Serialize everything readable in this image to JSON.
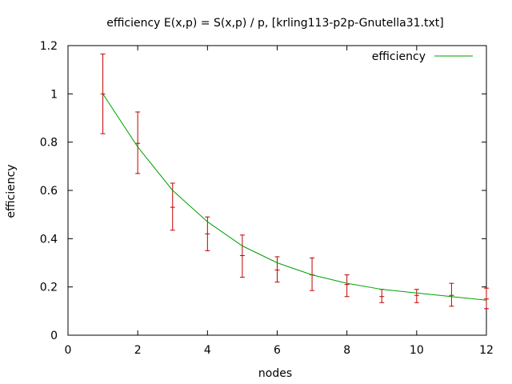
{
  "chart_data": {
    "type": "line",
    "title": "efficiency E(x,p) = S(x,p) / p, [krling113-p2p-Gnutella31.txt]",
    "xlabel": "nodes",
    "ylabel": "efficiency",
    "xlim": [
      0,
      12
    ],
    "ylim": [
      0,
      1.2
    ],
    "x_ticks": [
      "0",
      "2",
      "4",
      "6",
      "8",
      "10",
      "12"
    ],
    "y_ticks": [
      "0",
      "0.2",
      "0.4",
      "0.6",
      "0.8",
      "1",
      "1.2"
    ],
    "grid": false,
    "legend_position": "top-right",
    "colors": {
      "fit": "#00a000",
      "errorbars": "#c00000",
      "axes": "#000000"
    },
    "series": [
      {
        "name": "efficiency",
        "style": "line",
        "color": "#00a000",
        "x": [
          1,
          2,
          3,
          4,
          5,
          6,
          7,
          8,
          9,
          10,
          11,
          12
        ],
        "y": [
          1.0,
          0.78,
          0.6,
          0.47,
          0.37,
          0.3,
          0.25,
          0.215,
          0.19,
          0.175,
          0.16,
          0.145
        ]
      },
      {
        "style": "errorbars",
        "color": "#c00000",
        "x": [
          1,
          2,
          3,
          4,
          5,
          6,
          7,
          8,
          9,
          10,
          11,
          12
        ],
        "y": [
          1.0,
          0.795,
          0.53,
          0.42,
          0.33,
          0.27,
          0.25,
          0.21,
          0.16,
          0.165,
          0.165,
          0.15
        ],
        "ylow": [
          0.835,
          0.67,
          0.435,
          0.35,
          0.24,
          0.22,
          0.185,
          0.16,
          0.135,
          0.135,
          0.12,
          0.11
        ],
        "yhigh": [
          1.165,
          0.925,
          0.63,
          0.49,
          0.415,
          0.325,
          0.32,
          0.25,
          0.19,
          0.19,
          0.215,
          0.195
        ]
      }
    ]
  }
}
